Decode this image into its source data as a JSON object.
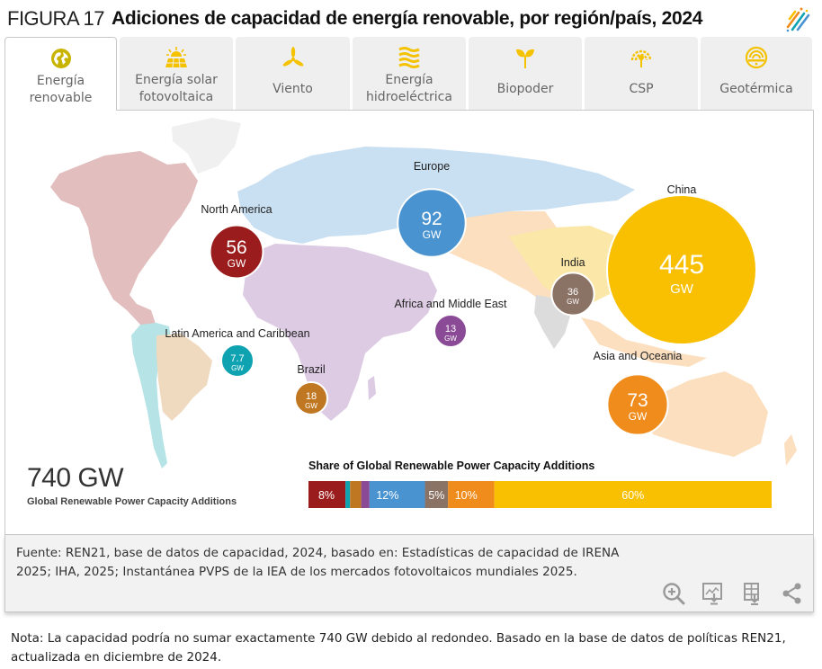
{
  "header": {
    "figure_number": "FIGURA 17",
    "title": "Adiciones de capacidad de energía renovable, por región/país, 2024"
  },
  "tabs": [
    {
      "label": "Energía\nrenovable",
      "icon": "globe-icon",
      "active": true
    },
    {
      "label": "Energía solar\nfotovoltaica",
      "icon": "solar-panel-icon",
      "active": false
    },
    {
      "label": "Viento",
      "icon": "wind-turbine-icon",
      "active": false
    },
    {
      "label": "Energía\nhidroeléctrica",
      "icon": "hydro-waves-icon",
      "active": false
    },
    {
      "label": "Biopoder",
      "icon": "sprout-icon",
      "active": false
    },
    {
      "label": "CSP",
      "icon": "csp-icon",
      "active": false
    },
    {
      "label": "Geotérmica",
      "icon": "geothermal-icon",
      "active": false
    }
  ],
  "colors": {
    "accent_icon": "#f5c200",
    "active_icon": "#c8b400",
    "north_america": "#9b1c1c",
    "latin_america": "#0fa3b1",
    "brazil": "#c07722",
    "africa_middle_east": "#8a4a96",
    "europe": "#4a93d1",
    "india": "#8a7264",
    "asia_oceania": "#f08c1c",
    "china": "#f8c000"
  },
  "chart_data": {
    "type": "bubble-map+stacked-bar",
    "title": "Adiciones de capacidad de energía renovable, por región/país, 2024",
    "unit": "GW",
    "total": {
      "value": "740 GW",
      "label": "Global Renewable Power Capacity Additions"
    },
    "regions": [
      {
        "name": "North America",
        "value": 56,
        "value_label": "56",
        "unit": "GW",
        "color": "#9b1c1c",
        "land_color": "#e2bebe"
      },
      {
        "name": "Latin America and Caribbean",
        "value": 7.7,
        "value_label": "7.7",
        "unit": "GW",
        "color": "#0fa3b1",
        "land_color": "#b5e3e6"
      },
      {
        "name": "Brazil",
        "value": 18,
        "value_label": "18",
        "unit": "GW",
        "color": "#c07722",
        "land_color": "#efd9bf"
      },
      {
        "name": "Europe",
        "value": 92,
        "value_label": "92",
        "unit": "GW",
        "color": "#4a93d1",
        "land_color": "#c9dff2"
      },
      {
        "name": "Africa and Middle East",
        "value": 13,
        "value_label": "13",
        "unit": "GW",
        "color": "#8a4a96",
        "land_color": "#dccbe3"
      },
      {
        "name": "India",
        "value": 36,
        "value_label": "36",
        "unit": "GW",
        "color": "#8a7264",
        "land_color": "#dcdcdc"
      },
      {
        "name": "China",
        "value": 445,
        "value_label": "445",
        "unit": "GW",
        "color": "#f8c000",
        "land_color": "#fbe8a8"
      },
      {
        "name": "Asia and Oceania",
        "value": 73,
        "value_label": "73",
        "unit": "GW",
        "color": "#f08c1c",
        "land_color": "#fbdfbf"
      }
    ],
    "share_bar": {
      "title": "Share of Global Renewable Power Capacity Additions",
      "segments": [
        {
          "region": "North America",
          "share": 8,
          "label": "8%",
          "color": "#9b1c1c"
        },
        {
          "region": "Latin America and Caribbean",
          "share": 1,
          "label": "",
          "color": "#0fa3b1"
        },
        {
          "region": "Brazil",
          "share": 2.4,
          "label": "",
          "color": "#c07722"
        },
        {
          "region": "Africa and Middle East",
          "share": 1.8,
          "label": "",
          "color": "#8a4a96"
        },
        {
          "region": "Europe",
          "share": 12,
          "label": "12%",
          "color": "#4a93d1"
        },
        {
          "region": "India",
          "share": 5,
          "label": "5%",
          "color": "#8a7264"
        },
        {
          "region": "Asia and Oceania",
          "share": 10,
          "label": "10%",
          "color": "#f08c1c"
        },
        {
          "region": "China",
          "share": 60,
          "label": "60%",
          "color": "#f8c000"
        }
      ]
    }
  },
  "footer": {
    "source": "Fuente: REN21, base de datos de capacidad, 2024, basado en: Estadísticas de capacidad de IRENA 2025; IHA, 2025; Instantánea PVPS de la IEA de los mercados fotovoltaicos mundiales 2025.",
    "tools": [
      "zoom-in-icon",
      "download-image-icon",
      "download-data-icon",
      "share-icon"
    ]
  },
  "note": "Nota: La capacidad podría no sumar exactamente 740 GW debido al redondeo. Basado en la base de datos de políticas REN21, actualizada en diciembre de 2024."
}
